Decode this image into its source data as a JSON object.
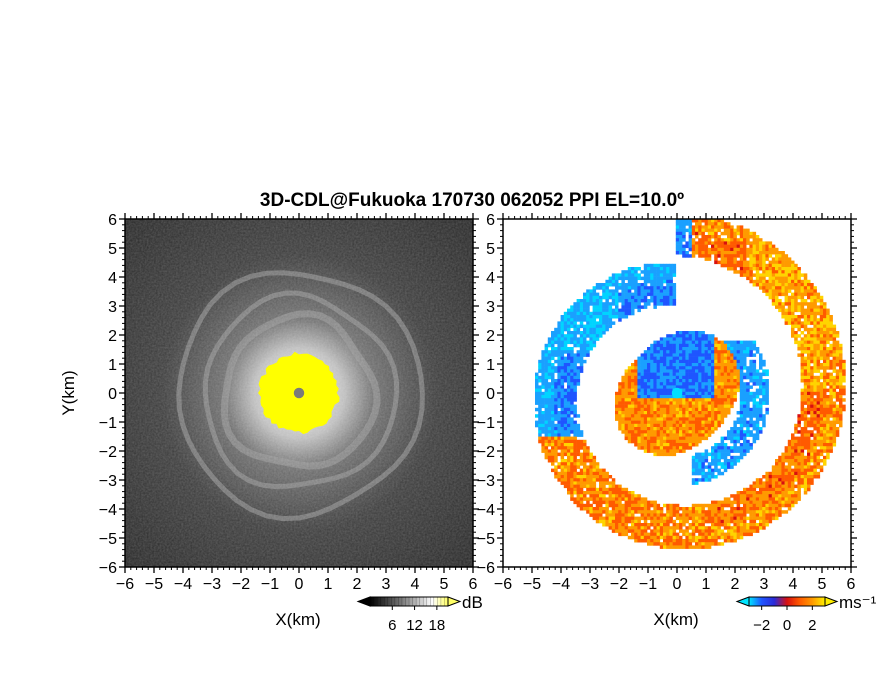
{
  "chart_data": [
    {
      "type": "heatmap",
      "title": "3D-CDL@Fukuoka 170730 062052 PPI EL=10.0º",
      "quantity": "backscatter intensity",
      "xlabel": "X(km)",
      "ylabel": "Y(km)",
      "xlim": [
        -6,
        6
      ],
      "ylim": [
        -6,
        6
      ],
      "xticks": [
        "−6",
        "−5",
        "−4",
        "−3",
        "−2",
        "−1",
        "0",
        "1",
        "2",
        "3",
        "4",
        "5",
        "6"
      ],
      "yticks": [
        "6",
        "5",
        "4",
        "3",
        "2",
        "1",
        "0",
        "−1",
        "−2",
        "−3",
        "−4",
        "−5",
        "−6"
      ],
      "colorbar": {
        "unit": "dB",
        "ticks": [
          "6",
          "12",
          "18"
        ],
        "range": [
          0,
          21
        ],
        "colors": [
          "#000000",
          "#ffffff",
          "#ffff00"
        ]
      },
      "features": {
        "near_range_saturated_radius_km": 1.4,
        "radar_site_marker_radius_km": 0.18,
        "rings_radius_km": [
          2.6,
          3.3,
          4.2
        ]
      }
    },
    {
      "type": "heatmap",
      "quantity": "radial velocity",
      "xlabel": "X(km)",
      "ylabel": "",
      "xlim": [
        -6,
        6
      ],
      "ylim": [
        -6,
        6
      ],
      "xticks": [
        "−6",
        "−5",
        "−4",
        "−3",
        "−2",
        "−1",
        "0",
        "1",
        "2",
        "3",
        "4",
        "5",
        "6"
      ],
      "yticks": [
        "6",
        "5",
        "4",
        "3",
        "2",
        "1",
        "0",
        "−1",
        "−2",
        "−3",
        "−4",
        "−5",
        "−6"
      ],
      "colorbar": {
        "unit": "ms⁻¹",
        "ticks": [
          "−2",
          "0",
          "2"
        ],
        "range": [
          -3,
          3
        ],
        "colors": [
          "#00e5ff",
          "#1f55ff",
          "#d71010",
          "#ff8a00",
          "#ffee00"
        ]
      },
      "features": {
        "spiral_band_radius_km": [
          1.8,
          5.6
        ],
        "inner_core_radius_km": 2.1,
        "center_marker_radius_km": 0.18
      }
    }
  ]
}
